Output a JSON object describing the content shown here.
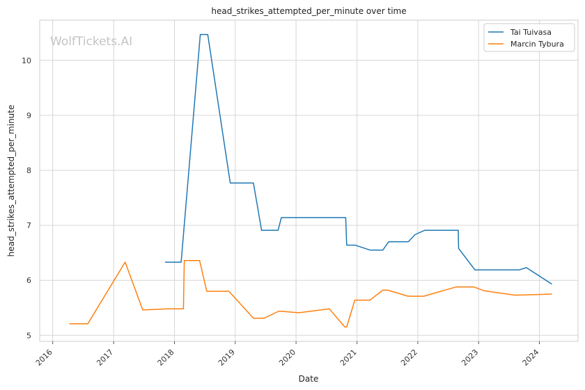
{
  "watermark": "WolfTickets.AI",
  "chart_data": {
    "type": "line",
    "title": "head_strikes_attempted_per_minute over time",
    "xlabel": "Date",
    "ylabel": "head_strikes_attempted_per_minute",
    "x_ticks": [
      "2016",
      "2017",
      "2018",
      "2019",
      "2020",
      "2021",
      "2022",
      "2023",
      "2024"
    ],
    "y_ticks": [
      5,
      6,
      7,
      8,
      9,
      10
    ],
    "xlim": [
      "2015-10-15",
      "2024-08-20"
    ],
    "ylim": [
      4.89,
      10.73
    ],
    "grid": true,
    "legend_position": "top-right",
    "series": [
      {
        "name": "Tai Tuivasa",
        "color": "#1f77b4",
        "points": [
          [
            "2017-11-05",
            6.33
          ],
          [
            "2018-02-10",
            6.33
          ],
          [
            "2018-06-05",
            10.47
          ],
          [
            "2018-07-20",
            10.47
          ],
          [
            "2018-12-02",
            7.77
          ],
          [
            "2019-04-20",
            7.77
          ],
          [
            "2019-06-08",
            6.91
          ],
          [
            "2019-09-15",
            6.91
          ],
          [
            "2019-10-05",
            7.14
          ],
          [
            "2020-10-25",
            7.14
          ],
          [
            "2020-10-31",
            6.64
          ],
          [
            "2020-12-20",
            6.64
          ],
          [
            "2021-03-20",
            6.55
          ],
          [
            "2021-06-05",
            6.55
          ],
          [
            "2021-07-10",
            6.7
          ],
          [
            "2021-11-05",
            6.7
          ],
          [
            "2021-12-15",
            6.83
          ],
          [
            "2022-02-12",
            6.91
          ],
          [
            "2022-09-01",
            6.91
          ],
          [
            "2022-09-03",
            6.58
          ],
          [
            "2022-12-10",
            6.19
          ],
          [
            "2023-09-02",
            6.19
          ],
          [
            "2023-10-15",
            6.23
          ],
          [
            "2024-03-16",
            5.93
          ]
        ]
      },
      {
        "name": "Marcin Tybura",
        "color": "#ff7f0e",
        "points": [
          [
            "2016-04-10",
            5.21
          ],
          [
            "2016-07-30",
            5.21
          ],
          [
            "2017-03-11",
            6.33
          ],
          [
            "2017-06-25",
            5.46
          ],
          [
            "2017-11-19",
            5.48
          ],
          [
            "2018-02-24",
            5.48
          ],
          [
            "2018-03-01",
            6.36
          ],
          [
            "2018-06-01",
            6.36
          ],
          [
            "2018-07-14",
            5.8
          ],
          [
            "2018-11-24",
            5.8
          ],
          [
            "2019-04-20",
            5.31
          ],
          [
            "2019-06-22",
            5.31
          ],
          [
            "2019-09-21",
            5.44
          ],
          [
            "2020-01-18",
            5.41
          ],
          [
            "2020-07-19",
            5.48
          ],
          [
            "2020-10-20",
            5.15
          ],
          [
            "2020-10-31",
            5.15
          ],
          [
            "2020-12-19",
            5.64
          ],
          [
            "2021-03-20",
            5.64
          ],
          [
            "2021-06-05",
            5.82
          ],
          [
            "2021-07-05",
            5.82
          ],
          [
            "2021-11-04",
            5.71
          ],
          [
            "2022-02-05",
            5.71
          ],
          [
            "2022-08-20",
            5.88
          ],
          [
            "2022-12-03",
            5.88
          ],
          [
            "2023-02-03",
            5.81
          ],
          [
            "2023-08-05",
            5.73
          ],
          [
            "2023-08-30",
            5.73
          ],
          [
            "2024-03-16",
            5.75
          ]
        ]
      }
    ]
  }
}
